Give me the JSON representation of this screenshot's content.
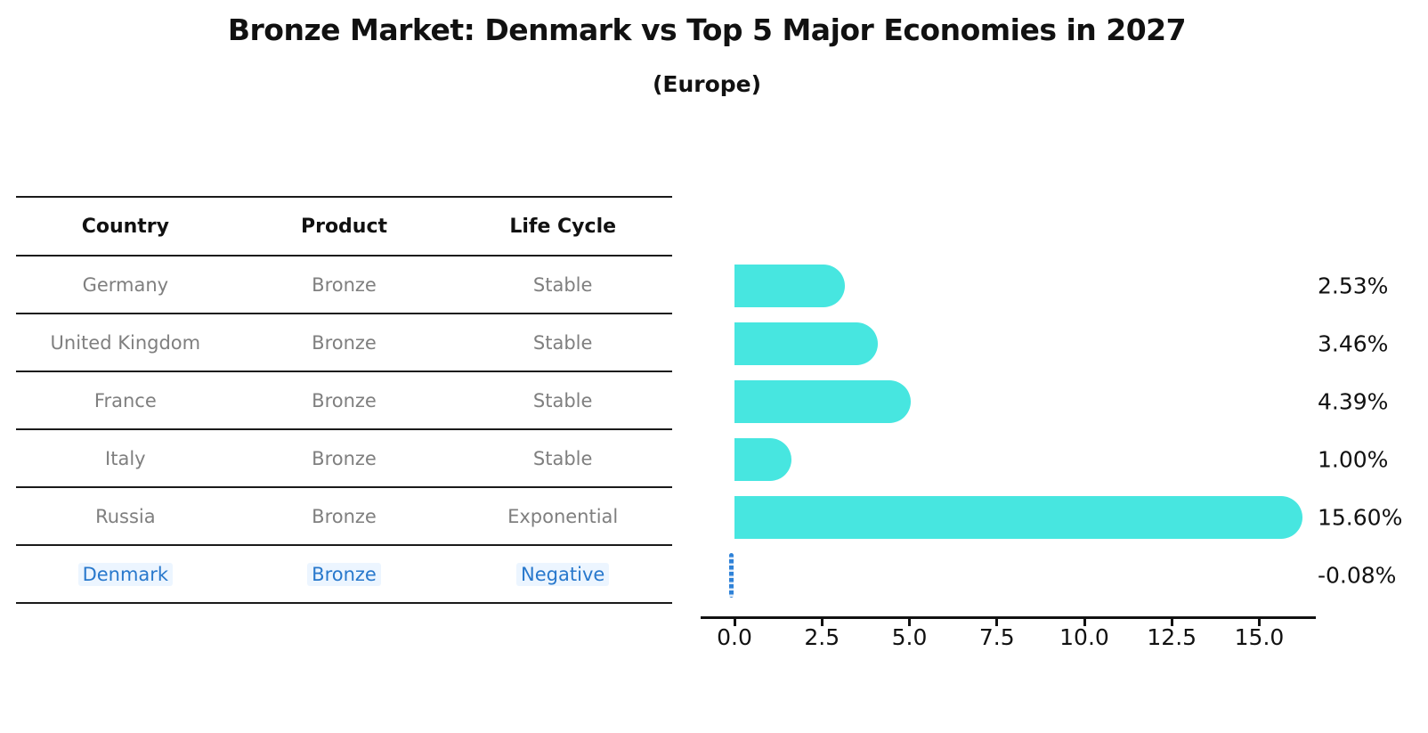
{
  "title": "Bronze Market: Denmark vs Top 5 Major Economies in 2027",
  "subtitle": "(Europe)",
  "table": {
    "headers": [
      "Country",
      "Product",
      "Life Cycle"
    ],
    "rows": [
      {
        "country": "Germany",
        "product": "Bronze",
        "life_cycle": "Stable",
        "highlighted": false
      },
      {
        "country": "United Kingdom",
        "product": "Bronze",
        "life_cycle": "Stable",
        "highlighted": false
      },
      {
        "country": "France",
        "product": "Bronze",
        "life_cycle": "Stable",
        "highlighted": false
      },
      {
        "country": "Italy",
        "product": "Bronze",
        "life_cycle": "Stable",
        "highlighted": false
      },
      {
        "country": "Russia",
        "product": "Bronze",
        "life_cycle": "Exponential",
        "highlighted": false
      },
      {
        "country": "Denmark",
        "product": "Bronze",
        "life_cycle": "Negative",
        "highlighted": true
      }
    ]
  },
  "chart_data": {
    "type": "bar",
    "orientation": "horizontal",
    "title": "Bronze Market: Denmark vs Top 5 Major Economies in 2027",
    "subtitle": "(Europe)",
    "categories": [
      "Germany",
      "United Kingdom",
      "France",
      "Italy",
      "Russia",
      "Denmark"
    ],
    "values": [
      2.53,
      3.46,
      4.39,
      1.0,
      15.6,
      -0.08
    ],
    "value_labels": [
      "2.53%",
      "3.46%",
      "4.39%",
      "1.00%",
      "15.60%",
      "-0.08%"
    ],
    "x_tick_values": [
      0,
      2.5,
      5,
      7.5,
      10,
      12.5,
      15
    ],
    "x_tick_labels": [
      "0.0",
      "2.5",
      "5.0",
      "7.5",
      "10.0",
      "12.5",
      "15.0"
    ],
    "xlim": [
      -1.0,
      16.6
    ],
    "grid": false,
    "legend": "none",
    "xlabel": "",
    "ylabel": ""
  },
  "colors": {
    "bar": "#47E6E0",
    "highlight_text": "#2878CC",
    "highlight_marker": "#2F82D8",
    "axis": "#111111"
  }
}
